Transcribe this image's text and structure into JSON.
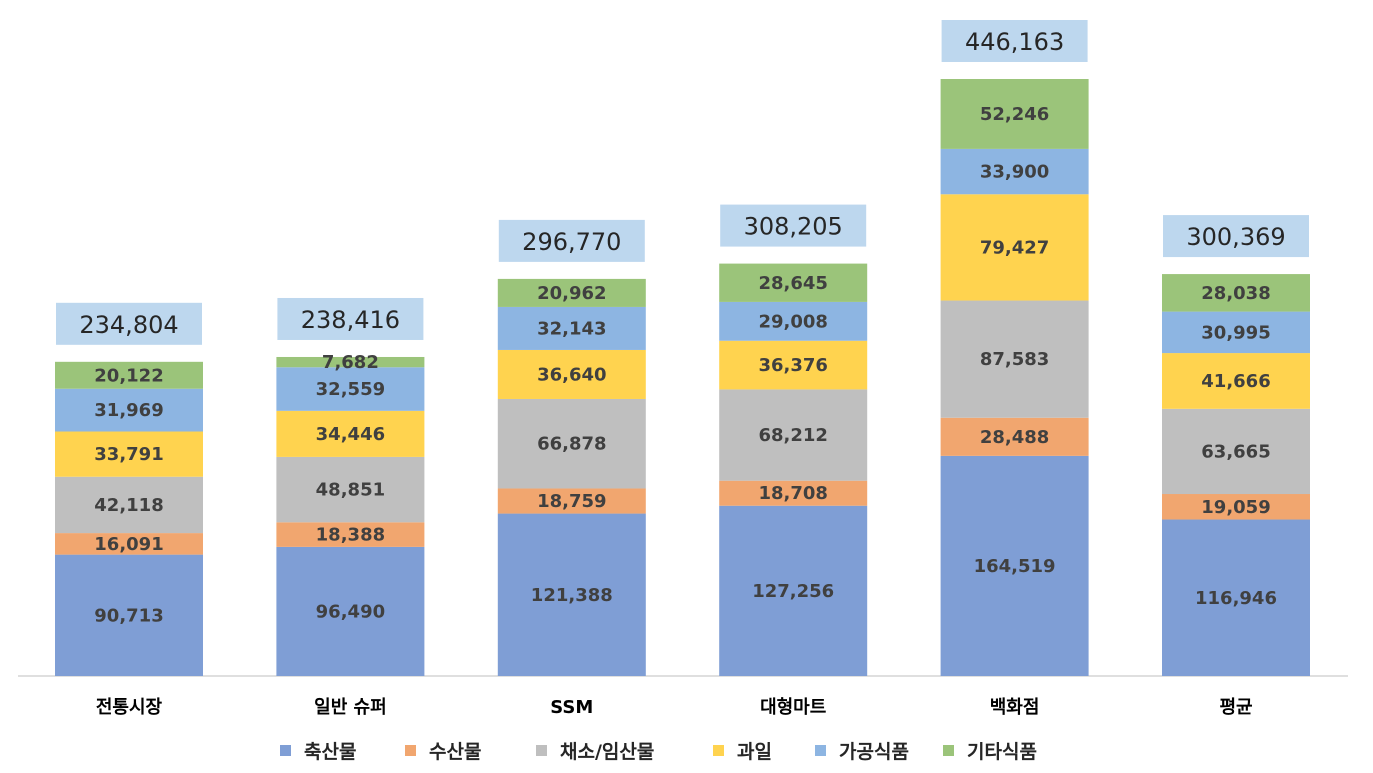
{
  "chart_data": {
    "type": "bar",
    "stacked": true,
    "title": "",
    "xlabel": "",
    "ylabel": "",
    "ylim": [
      0,
      470000
    ],
    "grid": false,
    "legend_position": "bottom",
    "categories": [
      "전통시장",
      "일반 슈퍼",
      "SSM",
      "대형마트",
      "백화점",
      "평균"
    ],
    "series": [
      {
        "name": "축산물",
        "color": "#7F9ED5",
        "values": [
          90713,
          96490,
          121388,
          127256,
          164519,
          116946
        ]
      },
      {
        "name": "수산물",
        "color": "#F1A66F",
        "values": [
          16091,
          18388,
          18759,
          18708,
          28488,
          19059
        ]
      },
      {
        "name": "채소/임산물",
        "color": "#BFBFBF",
        "values": [
          42118,
          48851,
          66878,
          68212,
          87583,
          63665
        ]
      },
      {
        "name": "과일",
        "color": "#FFD34F",
        "values": [
          33791,
          34446,
          36640,
          36376,
          79427,
          41666
        ]
      },
      {
        "name": "가공식품",
        "color": "#8DB5E2",
        "values": [
          31969,
          32559,
          32143,
          29008,
          33900,
          30995
        ]
      },
      {
        "name": "기타식품",
        "color": "#9BC47A",
        "values": [
          20122,
          7682,
          20962,
          28645,
          52246,
          28038
        ]
      }
    ],
    "totals": [
      234804,
      238416,
      296770,
      308205,
      446163,
      300369
    ],
    "total_label_bg": "#BDD7EE"
  }
}
